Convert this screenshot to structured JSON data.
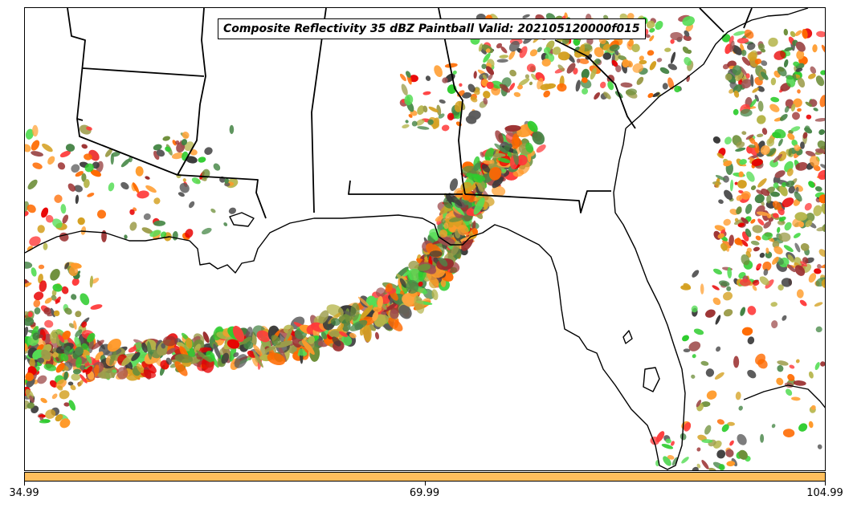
{
  "map": {
    "title": "Composite Reflectivity 35 dBZ Paintball Valid: 202105120000f015",
    "region_shown": "US Gulf Coast, Southeast US and Florida with Gulf of Mexico",
    "layers": [
      "coastline",
      "state-borders",
      "reflectivity-paintball-blobs"
    ]
  },
  "paintball": {
    "threshold_label": "35 dBZ",
    "member_colors": [
      "#ff3a3a",
      "#e80000",
      "#ff6a00",
      "#ff9a2a",
      "#ffa53d",
      "#9b2f2f",
      "#a05050",
      "#2ecc2e",
      "#55dd55",
      "#4a8a4a",
      "#3f7f3f",
      "#6e8f3a",
      "#9c9c4a",
      "#b5b54a",
      "#5a5a5a",
      "#3a3a3a",
      "#d4a020"
    ],
    "colors": {
      "state_border": "#000000",
      "coastline": "#000000"
    }
  },
  "colorbar": {
    "color": "#ffbe5c",
    "ticks": [
      {
        "label": "34.99",
        "value": 34.99
      },
      {
        "label": "69.99",
        "value": 69.99
      },
      {
        "label": "104.99",
        "value": 104.99
      }
    ],
    "range": [
      34.99,
      104.99
    ]
  }
}
